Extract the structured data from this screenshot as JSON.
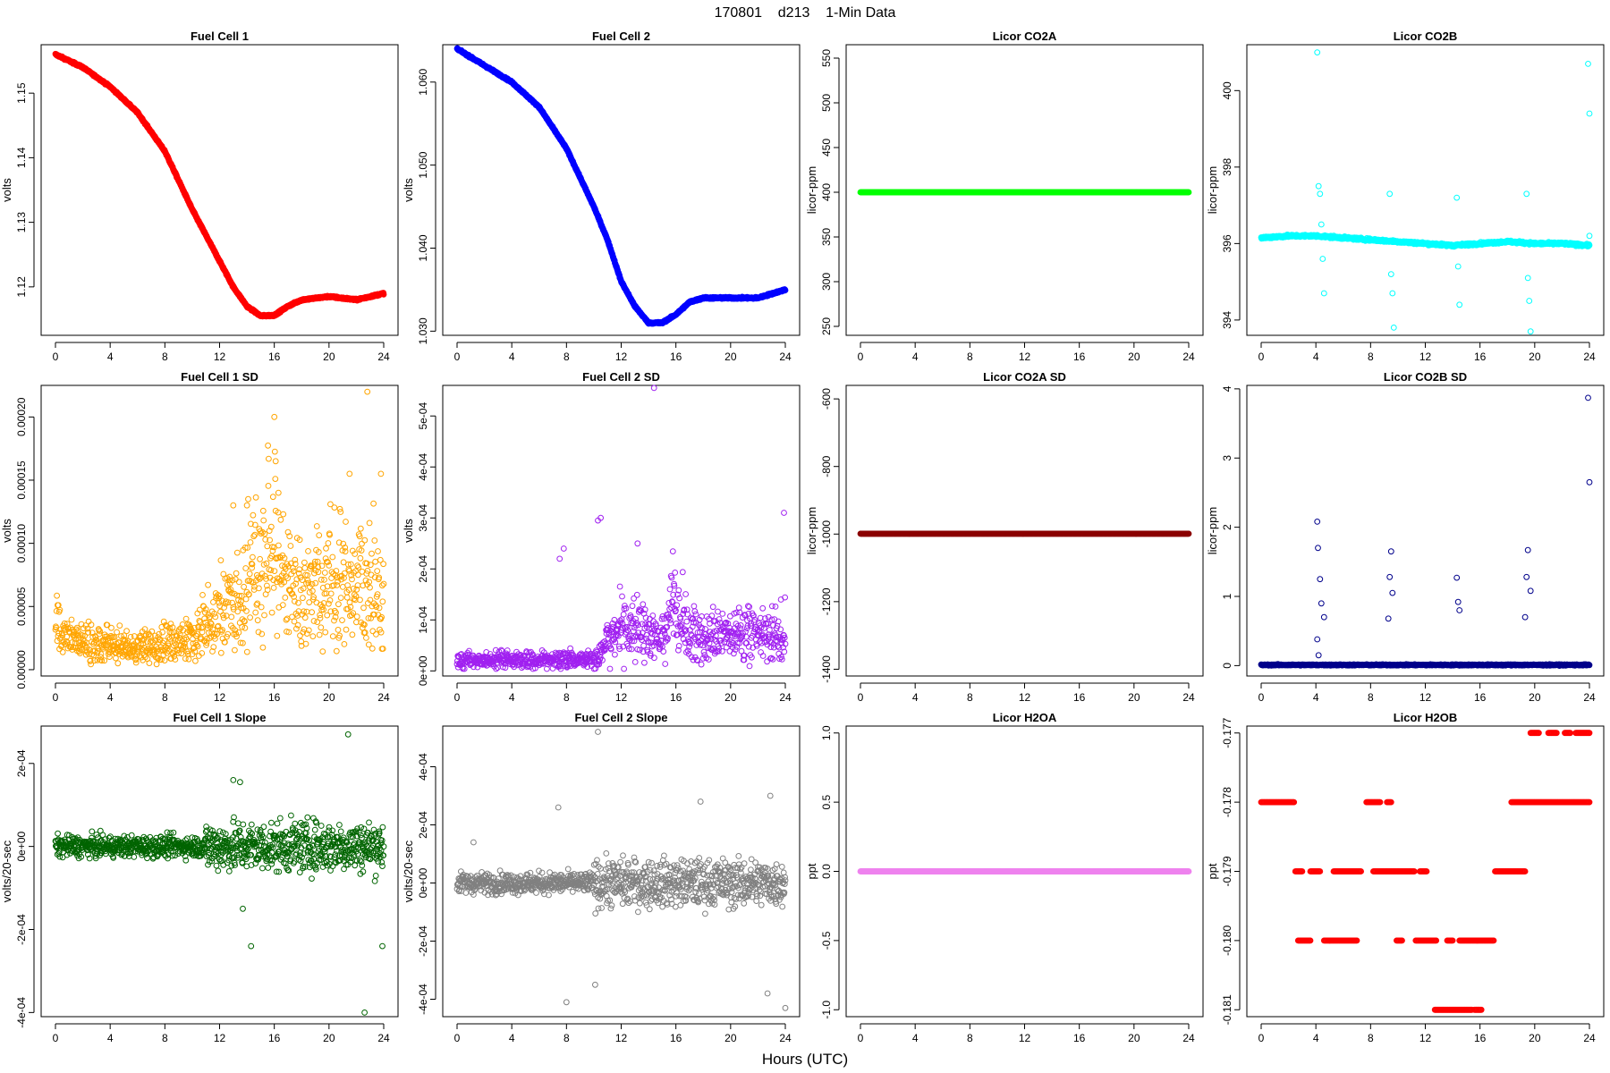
{
  "page": {
    "title": "170801    d213    1-Min Data",
    "xlabel": "Hours (UTC)"
  },
  "chart_data": [
    {
      "type": "scatter",
      "title": "Fuel Cell 1",
      "ylabel": "volts",
      "color": "#ff0000",
      "marker": "filled",
      "xlim": [
        0,
        24
      ],
      "ylim": [
        1.1125,
        1.1575
      ],
      "yticks": [
        1.12,
        1.13,
        1.14,
        1.15
      ],
      "yticklabels": [
        "1.12",
        "1.13",
        "1.14",
        "1.15"
      ],
      "series": [
        {
          "x": [
            0,
            2,
            4,
            6,
            8,
            10,
            12,
            13,
            14,
            15,
            16,
            17,
            18,
            20,
            22,
            24
          ],
          "y": [
            1.156,
            1.154,
            1.151,
            1.147,
            1.141,
            1.132,
            1.124,
            1.12,
            1.117,
            1.1155,
            1.1156,
            1.117,
            1.118,
            1.1185,
            1.118,
            1.119
          ]
        }
      ]
    },
    {
      "type": "scatter",
      "title": "Fuel Cell 2",
      "ylabel": "volts",
      "color": "#0000ff",
      "marker": "filled",
      "xlim": [
        0,
        24
      ],
      "ylim": [
        1.0295,
        1.0645
      ],
      "yticks": [
        1.03,
        1.04,
        1.05,
        1.06
      ],
      "yticklabels": [
        "1.030",
        "1.040",
        "1.050",
        "1.060"
      ],
      "series": [
        {
          "x": [
            0,
            2,
            4,
            6,
            8,
            10,
            11,
            12,
            13,
            14,
            15,
            16,
            17,
            18,
            20,
            22,
            23,
            24
          ],
          "y": [
            1.064,
            1.062,
            1.06,
            1.057,
            1.052,
            1.045,
            1.041,
            1.036,
            1.033,
            1.031,
            1.031,
            1.032,
            1.0335,
            1.034,
            1.034,
            1.034,
            1.0345,
            1.035
          ]
        }
      ]
    },
    {
      "type": "scatter",
      "title": "Licor CO2A",
      "ylabel": "licor-ppm",
      "color": "#00ff00",
      "marker": "filled",
      "xlim": [
        0,
        24
      ],
      "ylim": [
        240,
        565
      ],
      "yticks": [
        250,
        300,
        350,
        400,
        450,
        500,
        550
      ],
      "yticklabels": [
        "250",
        "300",
        "350",
        "400",
        "450",
        "500",
        "550"
      ],
      "series": [
        {
          "x": [
            0,
            24
          ],
          "y": [
            400,
            400
          ]
        }
      ]
    },
    {
      "type": "scatter",
      "title": "Licor CO2B",
      "ylabel": "licor-ppm",
      "color": "#00ffff",
      "marker": "mixed",
      "xlim": [
        0,
        24
      ],
      "ylim": [
        393.6,
        401.2
      ],
      "yticks": [
        394,
        396,
        398,
        400
      ],
      "yticklabels": [
        "394",
        "396",
        "398",
        "400"
      ],
      "series": [
        {
          "x": [
            0,
            2,
            4,
            6,
            8,
            10,
            12,
            14,
            16,
            18,
            20,
            22,
            24
          ],
          "y": [
            396.15,
            396.2,
            396.2,
            396.15,
            396.1,
            396.05,
            396.0,
            395.95,
            396.0,
            396.05,
            396.0,
            396.0,
            395.95
          ]
        },
        {
          "x": [
            4.1,
            4.2,
            4.3,
            4.4,
            4.5,
            4.6,
            9.4,
            9.5,
            9.6,
            9.7,
            14.3,
            14.4,
            14.5,
            19.4,
            19.5,
            19.6,
            19.7,
            23.9,
            24.0,
            24.0
          ],
          "y": [
            401,
            397.5,
            397.3,
            396.5,
            395.6,
            394.7,
            397.3,
            395.2,
            394.7,
            393.8,
            397.2,
            395.4,
            394.4,
            397.3,
            395.1,
            394.5,
            393.7,
            400.7,
            399.4,
            396.2
          ]
        }
      ]
    },
    {
      "type": "scatter",
      "title": "Fuel Cell 1 SD",
      "ylabel": "volts",
      "color": "#ffa500",
      "marker": "open",
      "xlim": [
        0,
        24
      ],
      "ylim": [
        -5e-06,
        0.000225
      ],
      "yticks": [
        0,
        5e-05,
        0.0001,
        0.00015,
        0.0002
      ],
      "yticklabels": [
        "0.00000",
        "0.00005",
        "0.00010",
        "0.00015",
        "0.00020"
      ],
      "series": [
        {
          "x": [
            0,
            2,
            4,
            6,
            8,
            10,
            12,
            13,
            14,
            15,
            16,
            17,
            18,
            20,
            22,
            24
          ],
          "y": [
            3e-05,
            2e-05,
            2e-05,
            1.5e-05,
            2e-05,
            2.5e-05,
            4e-05,
            5e-05,
            6e-05,
            7e-05,
            0.0001,
            6e-05,
            5.5e-05,
            6.5e-05,
            6e-05,
            6e-05
          ]
        },
        {
          "x": [
            13,
            14,
            16,
            16.1,
            16.3,
            21.5,
            22.8,
            23.8
          ],
          "y": [
            0.00013,
            0.00013,
            0.0002,
            0.000165,
            0.00014,
            0.000155,
            0.00022,
            0.000155
          ]
        }
      ]
    },
    {
      "type": "scatter",
      "title": "Fuel Cell 2 SD",
      "ylabel": "volts",
      "color": "#a020f0",
      "marker": "open",
      "xlim": [
        0,
        24
      ],
      "ylim": [
        -1e-05,
        0.00056
      ],
      "yticks": [
        0,
        0.0001,
        0.0002,
        0.0003,
        0.0004,
        0.0005
      ],
      "yticklabels": [
        "0e+00",
        "1e-04",
        "2e-04",
        "3e-04",
        "4e-04",
        "5e-04"
      ],
      "series": [
        {
          "x": [
            0,
            2,
            4,
            6,
            8,
            10,
            10.5,
            11,
            12,
            13,
            14,
            15,
            16,
            17,
            18,
            20,
            22,
            24
          ],
          "y": [
            2e-05,
            2e-05,
            2e-05,
            2e-05,
            2e-05,
            2e-05,
            3e-05,
            6e-05,
            9e-05,
            8e-05,
            7e-05,
            6e-05,
            0.00013,
            7e-05,
            6e-05,
            7e-05,
            7e-05,
            7e-05
          ]
        },
        {
          "x": [
            10.3,
            10.5,
            14.4,
            13.2,
            7.5,
            7.8,
            23.9
          ],
          "y": [
            0.000295,
            0.0003,
            0.000555,
            0.00025,
            0.00022,
            0.00024,
            0.00031
          ]
        }
      ]
    },
    {
      "type": "scatter",
      "title": "Licor CO2A SD",
      "ylabel": "licor-ppm",
      "color": "#8b0000",
      "marker": "filled",
      "xlim": [
        0,
        24
      ],
      "ylim": [
        -1420,
        -560
      ],
      "yticks": [
        -1400,
        -1200,
        -1000,
        -800,
        -600
      ],
      "yticklabels": [
        "-1400",
        "-1200",
        "-1000",
        "-800",
        "-600"
      ],
      "series": [
        {
          "x": [
            0,
            24
          ],
          "y": [
            -999,
            -999
          ]
        }
      ]
    },
    {
      "type": "scatter",
      "title": "Licor CO2B SD",
      "ylabel": "licor-ppm",
      "color": "#00008b",
      "marker": "open",
      "xlim": [
        0,
        24
      ],
      "ylim": [
        -0.15,
        4.05
      ],
      "yticks": [
        0,
        1,
        2,
        3,
        4
      ],
      "yticklabels": [
        "0",
        "1",
        "2",
        "3",
        "4"
      ],
      "series": [
        {
          "x": [
            0,
            4,
            8,
            12,
            16,
            20,
            24
          ],
          "y": [
            0.01,
            0.01,
            0.01,
            0.01,
            0.01,
            0.01,
            0.01
          ]
        },
        {
          "x": [
            4.1,
            4.15,
            4.3,
            4.4,
            4.6,
            4.1,
            4.2,
            9.4,
            9.5,
            9.6,
            9.3,
            14.3,
            14.4,
            14.5,
            19.4,
            19.5,
            19.7,
            19.3,
            23.9,
            24.0
          ],
          "y": [
            2.08,
            1.7,
            1.25,
            0.9,
            0.7,
            0.38,
            0.15,
            1.28,
            1.65,
            1.05,
            0.68,
            1.27,
            0.92,
            0.8,
            1.28,
            1.67,
            1.08,
            0.7,
            3.87,
            2.65
          ]
        }
      ]
    },
    {
      "type": "scatter",
      "title": "Fuel Cell 1 Slope",
      "ylabel": "volts/20-sec",
      "color": "#006400",
      "marker": "open",
      "xlim": [
        0,
        24
      ],
      "ylim": [
        -0.00041,
        0.00029
      ],
      "yticks": [
        -0.0004,
        -0.0002,
        0,
        0.0002
      ],
      "yticklabels": [
        "-4e-04",
        "-2e-04",
        "0e+00",
        "2e-04"
      ],
      "series": [
        {
          "x": [
            0,
            4,
            8,
            12,
            16,
            20,
            24
          ],
          "y": [
            0,
            0,
            0,
            0,
            0,
            0,
            0
          ]
        },
        {
          "x": [
            13.0,
            13.5,
            14.3,
            21.4,
            22.6,
            23.9,
            13.7
          ],
          "y": [
            0.00016,
            0.000155,
            -0.00024,
            0.00027,
            -0.0004,
            -0.00024,
            -0.00015
          ]
        }
      ]
    },
    {
      "type": "scatter",
      "title": "Fuel Cell 2 Slope",
      "ylabel": "volts/20-sec",
      "color": "#808080",
      "marker": "open",
      "xlim": [
        0,
        24
      ],
      "ylim": [
        -0.00046,
        0.00054
      ],
      "yticks": [
        -0.0004,
        -0.0002,
        0,
        0.0002,
        0.0004
      ],
      "yticklabels": [
        "-4e-04",
        "-2e-04",
        "0e+00",
        "2e-04",
        "4e-04"
      ],
      "series": [
        {
          "x": [
            0,
            4,
            8,
            12,
            16,
            20,
            24
          ],
          "y": [
            0,
            0,
            0,
            0,
            0,
            0,
            0
          ]
        },
        {
          "x": [
            10.3,
            7.4,
            8.0,
            17.8,
            22.7,
            24.0,
            22.9,
            10.1,
            1.2
          ],
          "y": [
            0.00052,
            0.00026,
            -0.00041,
            0.00028,
            -0.00038,
            -0.00043,
            0.0003,
            -0.00035,
            0.00014
          ]
        }
      ]
    },
    {
      "type": "scatter",
      "title": "Licor H2OA",
      "ylabel": "ppt",
      "color": "#ee82ee",
      "marker": "filled",
      "xlim": [
        0,
        24
      ],
      "ylim": [
        -1.05,
        1.05
      ],
      "yticks": [
        -1,
        -0.5,
        0,
        0.5,
        1
      ],
      "yticklabels": [
        "-1.0",
        "-0.5",
        "0.0",
        "0.5",
        "1.0"
      ],
      "series": [
        {
          "x": [
            0,
            24
          ],
          "y": [
            0,
            0
          ]
        }
      ]
    },
    {
      "type": "scatter",
      "title": "Licor H2OB",
      "ylabel": "ppt",
      "color": "#ff0000",
      "marker": "open",
      "xlim": [
        0,
        24
      ],
      "ylim": [
        -0.1811,
        -0.1769
      ],
      "yticks": [
        -0.181,
        -0.18,
        -0.179,
        -0.178,
        -0.177
      ],
      "yticklabels": [
        "-0.181",
        "-0.180",
        "-0.179",
        "-0.178",
        "-0.177"
      ],
      "series": [
        {
          "x": [
            0.0,
            2.4
          ],
          "y": [
            -0.178,
            -0.178
          ]
        },
        {
          "x": [
            2.5,
            3.0
          ],
          "y": [
            -0.179,
            -0.179
          ]
        },
        {
          "x": [
            3.6,
            4.3
          ],
          "y": [
            -0.179,
            -0.179
          ]
        },
        {
          "x": [
            5.3,
            7.3
          ],
          "y": [
            -0.179,
            -0.179
          ]
        },
        {
          "x": [
            8.2,
            11.2
          ],
          "y": [
            -0.179,
            -0.179
          ]
        },
        {
          "x": [
            11.6,
            12.1
          ],
          "y": [
            -0.179,
            -0.179
          ]
        },
        {
          "x": [
            2.7,
            3.6
          ],
          "y": [
            -0.18,
            -0.18
          ]
        },
        {
          "x": [
            4.6,
            5.0
          ],
          "y": [
            -0.18,
            -0.18
          ]
        },
        {
          "x": [
            5.0,
            7.0
          ],
          "y": [
            -0.18,
            -0.18
          ]
        },
        {
          "x": [
            9.9,
            10.3
          ],
          "y": [
            -0.18,
            -0.18
          ]
        },
        {
          "x": [
            11.3,
            12.8
          ],
          "y": [
            -0.18,
            -0.18
          ]
        },
        {
          "x": [
            13.6,
            14.0
          ],
          "y": [
            -0.18,
            -0.18
          ]
        },
        {
          "x": [
            14.5,
            17.0
          ],
          "y": [
            -0.18,
            -0.18
          ]
        },
        {
          "x": [
            7.7,
            8.7
          ],
          "y": [
            -0.178,
            -0.178
          ]
        },
        {
          "x": [
            9.2,
            9.5
          ],
          "y": [
            -0.178,
            -0.178
          ]
        },
        {
          "x": [
            12.7,
            15.4
          ],
          "y": [
            -0.181,
            -0.181
          ]
        },
        {
          "x": [
            15.6,
            16.1
          ],
          "y": [
            -0.181,
            -0.181
          ]
        },
        {
          "x": [
            17.1,
            19.3
          ],
          "y": [
            -0.179,
            -0.179
          ]
        },
        {
          "x": [
            18.3,
            24.0
          ],
          "y": [
            -0.178,
            -0.178
          ]
        },
        {
          "x": [
            19.7,
            20.3
          ],
          "y": [
            -0.177,
            -0.177
          ]
        },
        {
          "x": [
            21.0,
            21.6
          ],
          "y": [
            -0.177,
            -0.177
          ]
        },
        {
          "x": [
            22.2,
            22.6
          ],
          "y": [
            -0.177,
            -0.177
          ]
        },
        {
          "x": [
            23.0,
            24.0
          ],
          "y": [
            -0.177,
            -0.177
          ]
        }
      ]
    }
  ]
}
